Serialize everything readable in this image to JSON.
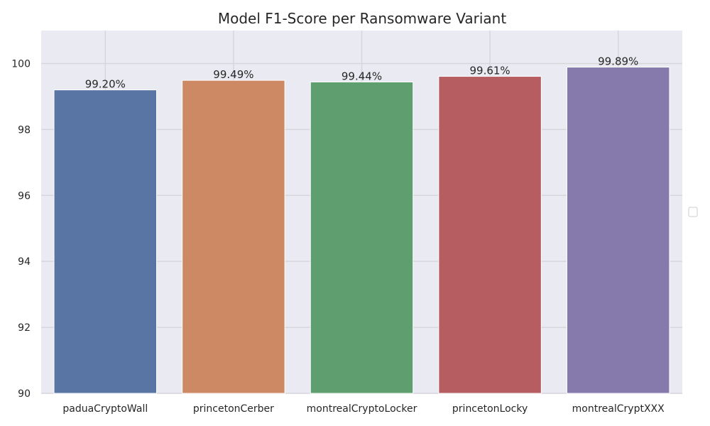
{
  "chart_data": {
    "type": "bar",
    "title": "Model F1-Score per Ransomware Variant",
    "xlabel": "",
    "ylabel": "",
    "categories": [
      "paduaCryptoWall",
      "princetonCerber",
      "montrealCryptoLocker",
      "princetonLocky",
      "montrealCryptXXX"
    ],
    "values": [
      99.2,
      99.49,
      99.44,
      99.61,
      99.89
    ],
    "data_labels": [
      "99.20%",
      "99.49%",
      "99.44%",
      "99.61%",
      "99.89%"
    ],
    "colors": [
      "#5875a4",
      "#cc8963",
      "#5f9e6e",
      "#b55d60",
      "#857aab"
    ],
    "ylim": [
      90,
      101
    ],
    "yticks": [
      90,
      92,
      94,
      96,
      98,
      100
    ],
    "grid": true,
    "plot_background": "#eaeaf2",
    "grid_color": "#d6d6dc",
    "legend": "right"
  }
}
